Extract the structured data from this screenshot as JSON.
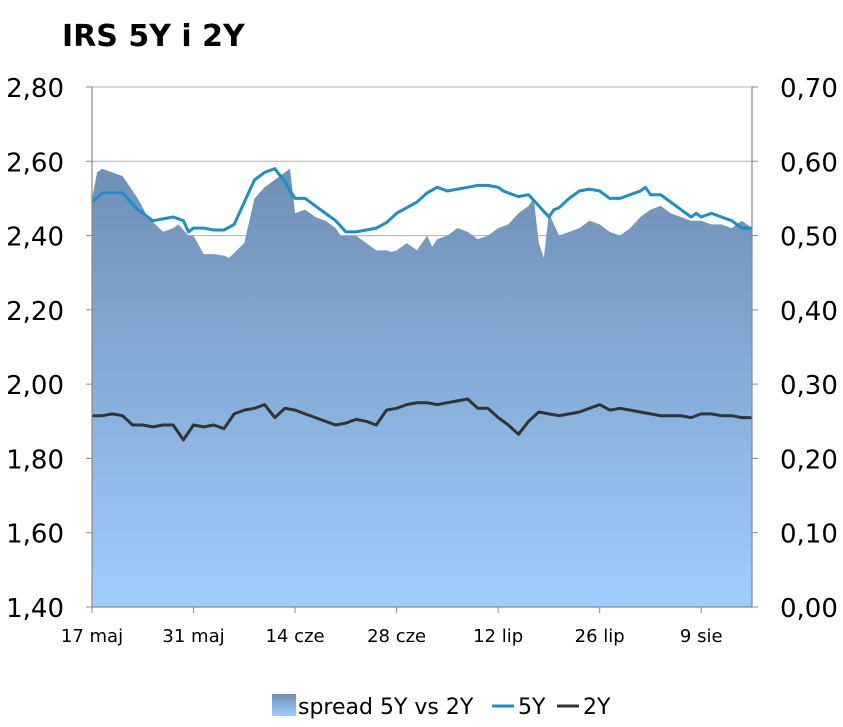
{
  "chart_data": {
    "type": "area",
    "title": "IRS 5Y i 2Y",
    "y_left": {
      "range": [
        1.4,
        2.8
      ],
      "ticks": [
        "1,40",
        "1,60",
        "1,80",
        "2,00",
        "2,20",
        "2,40",
        "2,60",
        "2,80"
      ]
    },
    "y_right": {
      "range": [
        0.0,
        0.7
      ],
      "ticks": [
        "0,00",
        "0,10",
        "0,20",
        "0,30",
        "0,40",
        "0,50",
        "0,60",
        "0,70"
      ]
    },
    "x_range": [
      0,
      65
    ],
    "x_ticks": [
      {
        "label": "17 maj",
        "x": 0
      },
      {
        "label": "31 maj",
        "x": 10
      },
      {
        "label": "14 cze",
        "x": 20
      },
      {
        "label": "28 cze",
        "x": 30
      },
      {
        "label": "12 lip",
        "x": 40
      },
      {
        "label": "26 lip",
        "x": 50
      },
      {
        "label": "9 sie",
        "x": 60
      }
    ],
    "grid": "horizontal",
    "legend_position": "bottom",
    "colors": {
      "spread": "#7aa0c8",
      "5Y": "#1a8fc8",
      "2Y": "#333333"
    },
    "legend": [
      {
        "name": "spread 5Y vs 2Y",
        "kind": "area"
      },
      {
        "name": "5Y",
        "kind": "line"
      },
      {
        "name": "2Y",
        "kind": "line"
      }
    ],
    "series": [
      {
        "name": "spread 5Y vs 2Y",
        "axis": "right",
        "x": [
          0,
          0.5,
          1,
          3,
          4.5,
          5.5,
          7,
          8,
          8.5,
          9.5,
          10,
          11,
          12,
          13,
          13.5,
          15,
          16,
          17,
          18,
          19,
          19.5,
          20,
          21,
          22,
          23,
          24,
          24.5,
          25,
          26,
          27,
          28,
          29,
          29.5,
          30,
          31,
          32,
          33,
          33.5,
          34,
          35,
          36,
          37,
          38,
          39,
          40,
          41,
          42,
          43,
          43.5,
          44,
          44.5,
          45,
          46,
          47,
          48,
          49,
          50,
          51,
          52,
          53,
          54,
          55,
          56,
          57,
          58,
          59,
          60,
          61,
          62,
          63,
          64,
          65
        ],
        "values": [
          0.55,
          0.585,
          0.59,
          0.58,
          0.55,
          0.525,
          0.505,
          0.51,
          0.515,
          0.5,
          0.5,
          0.475,
          0.475,
          0.473,
          0.47,
          0.49,
          0.55,
          0.565,
          0.575,
          0.585,
          0.59,
          0.53,
          0.535,
          0.525,
          0.52,
          0.51,
          0.5,
          0.5,
          0.5,
          0.49,
          0.48,
          0.48,
          0.478,
          0.48,
          0.49,
          0.48,
          0.5,
          0.485,
          0.495,
          0.5,
          0.51,
          0.505,
          0.495,
          0.5,
          0.51,
          0.515,
          0.53,
          0.54,
          0.55,
          0.49,
          0.47,
          0.53,
          0.5,
          0.505,
          0.51,
          0.52,
          0.515,
          0.505,
          0.5,
          0.51,
          0.525,
          0.535,
          0.54,
          0.53,
          0.525,
          0.52,
          0.52,
          0.515,
          0.515,
          0.51,
          0.52,
          0.51
        ]
      },
      {
        "name": "5Y",
        "axis": "left",
        "x": [
          0,
          1,
          3,
          4.5,
          6,
          8,
          9,
          9.5,
          10,
          11,
          12,
          13,
          14,
          15,
          16,
          17,
          18,
          19,
          19.5,
          20,
          21,
          22,
          23,
          24,
          25,
          26,
          27,
          28,
          29,
          30,
          31,
          32,
          33,
          34,
          35,
          36,
          37,
          38,
          39,
          40,
          40.5,
          41,
          42,
          43,
          44,
          45,
          45.5,
          46,
          47,
          48,
          49,
          50,
          51,
          52,
          53,
          54,
          54.5,
          55,
          56,
          57,
          58,
          59,
          59.5,
          60,
          61,
          62,
          63,
          64,
          65
        ],
        "values": [
          2.49,
          2.515,
          2.515,
          2.47,
          2.44,
          2.45,
          2.44,
          2.41,
          2.42,
          2.42,
          2.415,
          2.415,
          2.43,
          2.49,
          2.55,
          2.57,
          2.58,
          2.545,
          2.52,
          2.5,
          2.5,
          2.48,
          2.46,
          2.44,
          2.41,
          2.41,
          2.415,
          2.42,
          2.435,
          2.46,
          2.475,
          2.49,
          2.515,
          2.53,
          2.52,
          2.525,
          2.53,
          2.535,
          2.535,
          2.53,
          2.52,
          2.515,
          2.505,
          2.51,
          2.48,
          2.45,
          2.47,
          2.475,
          2.5,
          2.52,
          2.525,
          2.52,
          2.5,
          2.5,
          2.51,
          2.52,
          2.53,
          2.51,
          2.51,
          2.49,
          2.47,
          2.45,
          2.46,
          2.45,
          2.46,
          2.45,
          2.44,
          2.42,
          2.42
        ]
      },
      {
        "name": "2Y",
        "axis": "left",
        "x": [
          0,
          1,
          2,
          3,
          4,
          5,
          6,
          7,
          8,
          9,
          10,
          11,
          12,
          13,
          14,
          15,
          16,
          17,
          18,
          19,
          20,
          21,
          22,
          23,
          24,
          25,
          26,
          27,
          28,
          29,
          30,
          31,
          32,
          33,
          34,
          35,
          36,
          37,
          38,
          39,
          40,
          41,
          42,
          43,
          44,
          45,
          46,
          47,
          48,
          49,
          50,
          51,
          52,
          53,
          54,
          55,
          56,
          57,
          58,
          59,
          60,
          61,
          62,
          63,
          64,
          65
        ],
        "values": [
          1.915,
          1.915,
          1.92,
          1.915,
          1.89,
          1.89,
          1.885,
          1.89,
          1.89,
          1.85,
          1.89,
          1.885,
          1.89,
          1.88,
          1.92,
          1.93,
          1.935,
          1.945,
          1.91,
          1.935,
          1.93,
          1.92,
          1.91,
          1.9,
          1.89,
          1.895,
          1.905,
          1.9,
          1.89,
          1.93,
          1.935,
          1.945,
          1.95,
          1.95,
          1.945,
          1.95,
          1.955,
          1.96,
          1.935,
          1.935,
          1.91,
          1.89,
          1.865,
          1.9,
          1.925,
          1.92,
          1.915,
          1.92,
          1.925,
          1.935,
          1.945,
          1.93,
          1.935,
          1.93,
          1.925,
          1.92,
          1.915,
          1.915,
          1.915,
          1.91,
          1.92,
          1.92,
          1.915,
          1.915,
          1.91,
          1.91
        ]
      }
    ]
  }
}
